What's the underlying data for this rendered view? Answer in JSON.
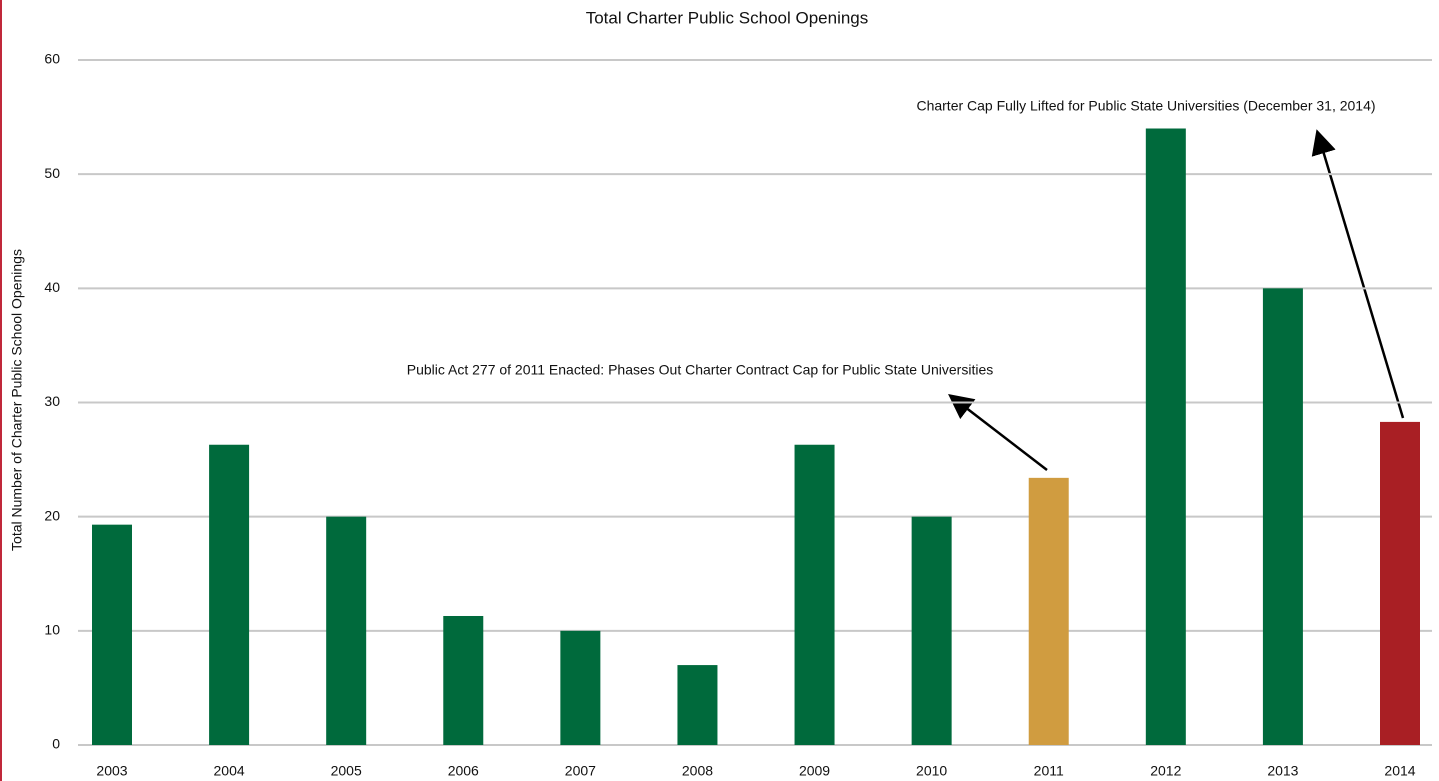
{
  "chart_data": {
    "type": "bar",
    "title": "Total Charter Public School Openings",
    "y_label": "Total Number of Charter Public School Openings",
    "categories": [
      "2003",
      "2004",
      "2005",
      "2006",
      "2007",
      "2008",
      "2009",
      "2010",
      "2011",
      "2012",
      "2013",
      "2014"
    ],
    "values": [
      19.3,
      26.3,
      20,
      11.3,
      10,
      7,
      26.3,
      20,
      23.4,
      54,
      40,
      28.3
    ],
    "colors": [
      "#006a3c",
      "#006a3c",
      "#006a3c",
      "#006a3c",
      "#006a3c",
      "#006a3c",
      "#006a3c",
      "#006a3c",
      "#d09c40",
      "#006a3c",
      "#006a3c",
      "#a91f24"
    ],
    "ylim": [
      0,
      60
    ],
    "yticks": [
      0,
      10,
      20,
      30,
      40,
      50,
      60
    ],
    "grid": true,
    "annotations": [
      {
        "text": "Public Act 277 of 2011 Enacted: Phases Out Charter Contract Cap for Public State Universities"
      },
      {
        "text": "Charter Cap Fully Lifted for Public State Universities (December 31, 2014)"
      }
    ]
  }
}
